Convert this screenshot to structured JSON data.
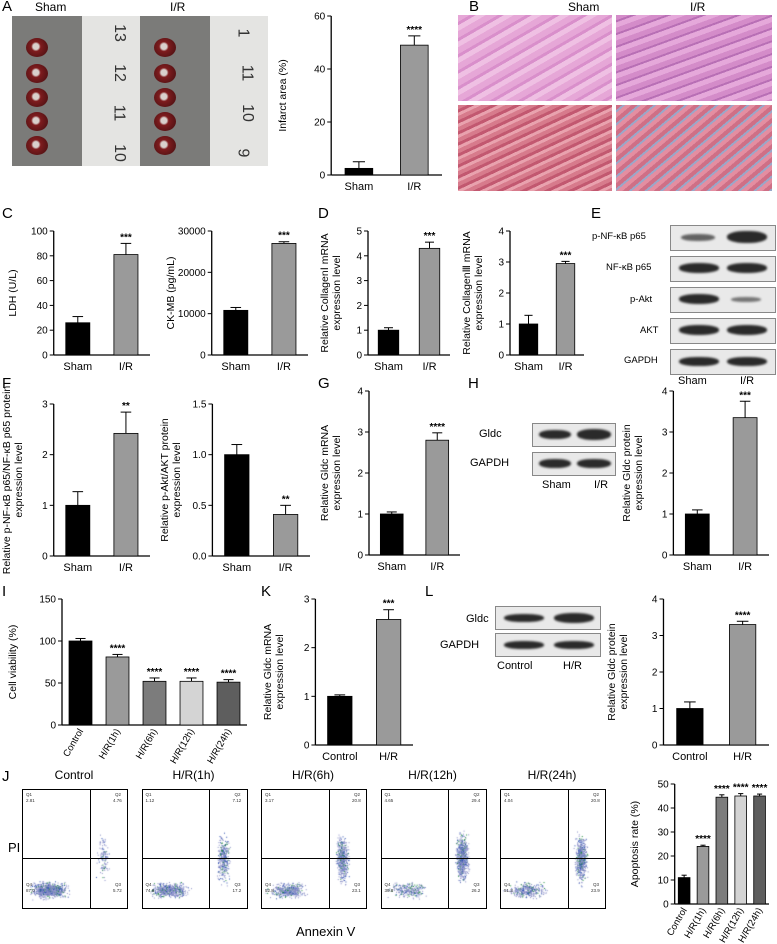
{
  "panels": {
    "A": {
      "label": "A",
      "group1": "Sham",
      "group2": "I/R",
      "ruler_numbers_sham": [
        "13",
        "12",
        "11",
        "10"
      ],
      "ruler_numbers_ir": [
        "1",
        "11",
        "10",
        "9"
      ]
    },
    "B": {
      "label": "B",
      "col1": "Sham",
      "col2": "I/R"
    },
    "C": {
      "label": "C"
    },
    "D": {
      "label": "D"
    },
    "E": {
      "label": "E",
      "proteins": [
        "p-NF-κB p65",
        "NF-κB p65",
        "p-Akt",
        "AKT",
        "GAPDH"
      ],
      "groups": [
        "Sham",
        "I/R"
      ]
    },
    "F": {
      "label": "F"
    },
    "G": {
      "label": "G"
    },
    "H": {
      "label": "H",
      "proteins": [
        "Gldc",
        "GAPDH"
      ],
      "groups": [
        "Sham",
        "I/R"
      ]
    },
    "I": {
      "label": "I"
    },
    "K": {
      "label": "K"
    },
    "L": {
      "label": "L",
      "proteins": [
        "Gldc",
        "GAPDH"
      ],
      "groups": [
        "Control",
        "H/R"
      ]
    },
    "J": {
      "label": "J",
      "ylabel": "PI",
      "xlabel": "Annexin V",
      "plots": [
        {
          "title": "Control",
          "q1": "Q1",
          "q1v": "2.81",
          "q2": "Q2",
          "q2v": "4.76",
          "q3": "Q3",
          "q3v": "5.72",
          "q4": "Q4",
          "q4v": "87.0"
        },
        {
          "title": "H/R(1h)",
          "q1": "Q1",
          "q1v": "1.12",
          "q2": "Q2",
          "q2v": "7.12",
          "q3": "Q3",
          "q3v": "17.2",
          "q4": "Q4",
          "q4v": "74.6"
        },
        {
          "title": "H/R(6h)",
          "q1": "Q1",
          "q1v": "3.17",
          "q2": "Q2",
          "q2v": "20.8",
          "q3": "Q3",
          "q3v": "23.1",
          "q4": "Q4",
          "q4v": "52.8"
        },
        {
          "title": "H/R(12h)",
          "q1": "Q1",
          "q1v": "4.65",
          "q2": "Q2",
          "q2v": "29.4",
          "q3": "Q3",
          "q3v": "26.2",
          "q4": "Q4",
          "q4v": "39.8"
        },
        {
          "title": "H/R(24h)",
          "q1": "Q1",
          "q1v": "4.04",
          "q2": "Q2",
          "q2v": "20.8",
          "q3": "Q3",
          "q3v": "23.9",
          "q4": "Q4",
          "q4v": "51.3"
        }
      ]
    }
  },
  "colors": {
    "black": "#000000",
    "gray": "#9a9a9a",
    "lightgray": "#d4d4d4",
    "midgray": "#7c7c7c",
    "darkgray": "#5e5e5e"
  },
  "chart_data": [
    {
      "id": "A",
      "type": "bar",
      "categories": [
        "Sham",
        "I/R"
      ],
      "values": [
        2.5,
        49
      ],
      "errors": [
        2.5,
        3.5
      ],
      "colors": [
        "#000000",
        "#9a9a9a"
      ],
      "ylabel": "Infarct area (%)",
      "ylim": [
        0,
        60
      ],
      "yticks": [
        0,
        20,
        40,
        60
      ],
      "sig": "****"
    },
    {
      "id": "C1",
      "type": "bar",
      "categories": [
        "Sham",
        "I/R"
      ],
      "values": [
        26,
        81
      ],
      "errors": [
        5,
        9
      ],
      "colors": [
        "#000000",
        "#9a9a9a"
      ],
      "ylabel": "LDH (U/L)",
      "ylim": [
        0,
        100
      ],
      "yticks": [
        0,
        20,
        40,
        60,
        80,
        100
      ],
      "sig": "***"
    },
    {
      "id": "C2",
      "type": "bar",
      "categories": [
        "Sham",
        "I/R"
      ],
      "values": [
        10800,
        27000
      ],
      "errors": [
        700,
        400
      ],
      "colors": [
        "#000000",
        "#9a9a9a"
      ],
      "ylabel": "CK-MB (pg/mL)",
      "ylim": [
        0,
        30000
      ],
      "yticks": [
        0,
        10000,
        20000,
        30000
      ],
      "sig": "***"
    },
    {
      "id": "D1",
      "type": "bar",
      "categories": [
        "Sham",
        "I/R"
      ],
      "values": [
        1.0,
        4.3
      ],
      "errors": [
        0.1,
        0.25
      ],
      "colors": [
        "#000000",
        "#9a9a9a"
      ],
      "ylabel": "Relative CollagenⅠ mRNA expression level",
      "ylim": [
        0,
        5
      ],
      "yticks": [
        0,
        1,
        2,
        3,
        4,
        5
      ],
      "sig": "***"
    },
    {
      "id": "D2",
      "type": "bar",
      "categories": [
        "Sham",
        "I/R"
      ],
      "values": [
        1.0,
        2.95
      ],
      "errors": [
        0.28,
        0.07
      ],
      "colors": [
        "#000000",
        "#9a9a9a"
      ],
      "ylabel": "Relative CollagenⅢ mRNA expression level",
      "ylim": [
        0,
        4
      ],
      "yticks": [
        0,
        1,
        2,
        3,
        4
      ],
      "sig": "***"
    },
    {
      "id": "F1",
      "type": "bar",
      "categories": [
        "Sham",
        "I/R"
      ],
      "values": [
        1.0,
        2.42
      ],
      "errors": [
        0.27,
        0.42
      ],
      "colors": [
        "#000000",
        "#9a9a9a"
      ],
      "ylabel": "Relative p-NF-κB p65/NF-κB p65 protein expression level",
      "ylim": [
        0,
        3
      ],
      "yticks": [
        0,
        1,
        2,
        3
      ],
      "sig": "**"
    },
    {
      "id": "F2",
      "type": "bar",
      "categories": [
        "Sham",
        "I/R"
      ],
      "values": [
        1.0,
        0.41
      ],
      "errors": [
        0.1,
        0.09
      ],
      "colors": [
        "#000000",
        "#9a9a9a"
      ],
      "ylabel": "Relative p-Akt/AKT protein expression level",
      "ylim": [
        0,
        1.5
      ],
      "yticks": [
        "0.0",
        "0.5",
        "1.0",
        "1.5"
      ],
      "sig": "**"
    },
    {
      "id": "G",
      "type": "bar",
      "categories": [
        "Sham",
        "I/R"
      ],
      "values": [
        1.0,
        2.8
      ],
      "errors": [
        0.05,
        0.18
      ],
      "colors": [
        "#000000",
        "#9a9a9a"
      ],
      "ylabel": "Relative Gldc mRNA expression level",
      "ylim": [
        0,
        4
      ],
      "yticks": [
        0,
        1,
        2,
        3,
        4
      ],
      "sig": "****"
    },
    {
      "id": "H",
      "type": "bar",
      "categories": [
        "Sham",
        "I/R"
      ],
      "values": [
        1.0,
        3.35
      ],
      "errors": [
        0.1,
        0.4
      ],
      "colors": [
        "#000000",
        "#9a9a9a"
      ],
      "ylabel": "Relative Gldc protein expression level",
      "ylim": [
        0,
        4
      ],
      "yticks": [
        0,
        1,
        2,
        3,
        4
      ],
      "sig": "***"
    },
    {
      "id": "I",
      "type": "bar",
      "categories": [
        "Control",
        "H/R(1h)",
        "H/R(6h)",
        "H/R(12h)",
        "H/R(24h)"
      ],
      "values": [
        100,
        81,
        52,
        52,
        51
      ],
      "errors": [
        3,
        3,
        4,
        4,
        3
      ],
      "colors": [
        "#000000",
        "#9a9a9a",
        "#7c7c7c",
        "#d4d4d4",
        "#5e5e5e"
      ],
      "ylabel": "Cell viability (%)",
      "ylim": [
        0,
        150
      ],
      "yticks": [
        0,
        50,
        100,
        150
      ],
      "sigs": [
        "",
        "****",
        "****",
        "****",
        "****"
      ],
      "rotate": true
    },
    {
      "id": "K",
      "type": "bar",
      "categories": [
        "Control",
        "H/R"
      ],
      "values": [
        1.0,
        2.58
      ],
      "errors": [
        0.03,
        0.2
      ],
      "colors": [
        "#000000",
        "#9a9a9a"
      ],
      "ylabel": "Relative Gldc mRNA expression level",
      "ylim": [
        0,
        3
      ],
      "yticks": [
        0,
        1,
        2,
        3
      ],
      "sig": "***"
    },
    {
      "id": "L",
      "type": "bar",
      "categories": [
        "Control",
        "H/R"
      ],
      "values": [
        1.0,
        3.3
      ],
      "errors": [
        0.18,
        0.09
      ],
      "colors": [
        "#000000",
        "#9a9a9a"
      ],
      "ylabel": "Relative Gldc protein expression level",
      "ylim": [
        0,
        4
      ],
      "yticks": [
        0,
        1,
        2,
        3,
        4
      ],
      "sig": "****"
    },
    {
      "id": "J",
      "type": "bar",
      "categories": [
        "Control",
        "H/R(1h)",
        "H/R(6h)",
        "H/R(12h)",
        "H/R(24h)"
      ],
      "values": [
        11,
        24,
        44.5,
        45,
        45
      ],
      "errors": [
        1,
        0.5,
        1,
        1,
        0.8
      ],
      "colors": [
        "#000000",
        "#9a9a9a",
        "#7c7c7c",
        "#d4d4d4",
        "#5e5e5e"
      ],
      "ylabel": "Apoptosis rate (%)",
      "ylim": [
        0,
        50
      ],
      "yticks": [
        0,
        10,
        20,
        30,
        40,
        50
      ],
      "sigs": [
        "",
        "****",
        "****",
        "****",
        "****"
      ],
      "rotate": true
    }
  ]
}
